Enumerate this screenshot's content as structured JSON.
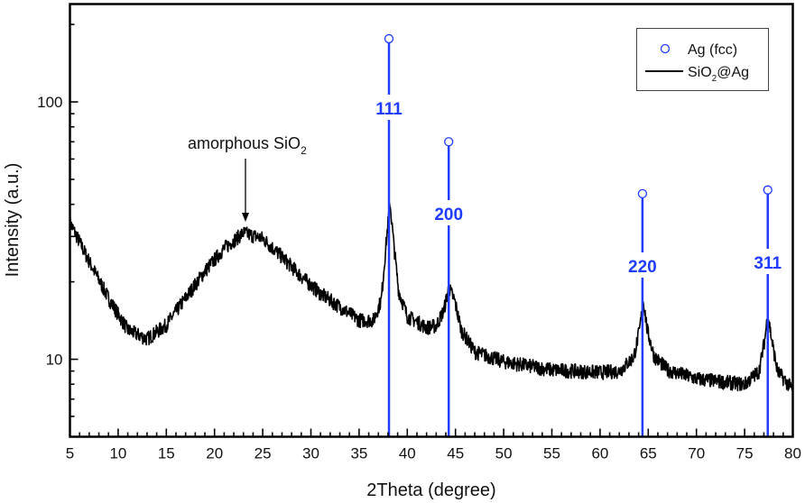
{
  "chart_data": {
    "type": "line",
    "xlabel": "2Theta (degree)",
    "ylabel": "Intensity (a.u.)",
    "xlim": [
      5,
      80
    ],
    "ylim": [
      5,
      240
    ],
    "yscale": "log",
    "grid": false,
    "x_ticks": [
      "5",
      "10",
      "15",
      "20",
      "25",
      "30",
      "35",
      "40",
      "45",
      "50",
      "55",
      "60",
      "65",
      "70",
      "75",
      "80"
    ],
    "y_ticks": [
      "10",
      "100"
    ],
    "legend": {
      "placement": "top-right",
      "entries": [
        {
          "label": "Ag (fcc)",
          "marker": "open-circle",
          "color": "#1f3cff"
        },
        {
          "label_main": "SiO",
          "label_sub": "2",
          "label_tail": "@Ag",
          "marker": "line",
          "color": "#000000"
        }
      ]
    },
    "series": [
      {
        "name": "SiO2@Ag",
        "color": "#000000",
        "x": [
          5,
          7,
          9,
          11,
          13,
          15,
          17,
          19,
          21,
          23,
          25,
          27,
          29,
          31,
          33,
          35,
          36.5,
          37.3,
          37.8,
          38.2,
          38.6,
          39.1,
          40,
          41,
          42,
          43,
          43.8,
          44.3,
          44.9,
          45.6,
          47,
          50,
          55,
          60,
          62,
          63.5,
          64.1,
          64.5,
          64.9,
          65.6,
          67,
          70,
          75,
          76.5,
          77.1,
          77.4,
          77.8,
          78.4,
          80
        ],
        "y": [
          34,
          24,
          17.3,
          13,
          12,
          13.6,
          17.3,
          22,
          27,
          31,
          29.5,
          25,
          21,
          18,
          16,
          14.2,
          14.2,
          17,
          28,
          41,
          28,
          18.5,
          14.7,
          14,
          13.3,
          13.5,
          15.5,
          19,
          17,
          13,
          10.7,
          9.8,
          9.1,
          8.9,
          9,
          10.2,
          13,
          16.9,
          13,
          10.3,
          9.1,
          8.4,
          8,
          9,
          12,
          15.1,
          12,
          9,
          7.6
        ]
      }
    ],
    "reference_peaks": {
      "name": "Ag (fcc)",
      "color": "#1f3cff",
      "peaks": [
        {
          "x": 38.1,
          "intensity": 176,
          "label": "111"
        },
        {
          "x": 44.3,
          "intensity": 70,
          "label": "200"
        },
        {
          "x": 64.4,
          "intensity": 44,
          "label": "220"
        },
        {
          "x": 77.4,
          "intensity": 45.5,
          "label": "311"
        }
      ]
    },
    "annotations": [
      {
        "text_main": "amorphous SiO",
        "text_sub": "2",
        "x": 23.3,
        "arrow_to_y": 31
      }
    ]
  }
}
